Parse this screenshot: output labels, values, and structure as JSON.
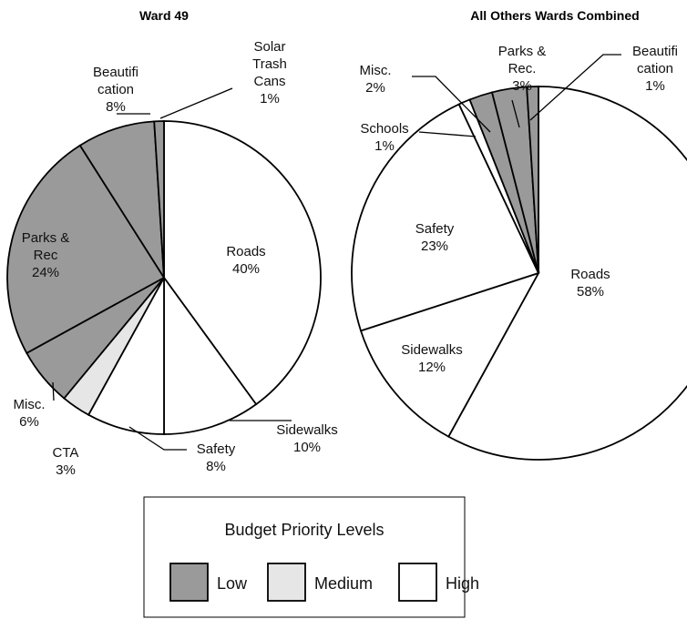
{
  "chart_data": [
    {
      "type": "pie",
      "title": "Ward 49",
      "slices": [
        {
          "name": "Roads",
          "label_lines": [
            "Roads",
            "40%"
          ],
          "value": 40,
          "priority": "high"
        },
        {
          "name": "Sidewalks",
          "label_lines": [
            "Sidewalks",
            "10%"
          ],
          "value": 10,
          "priority": "high"
        },
        {
          "name": "Safety",
          "label_lines": [
            "Safety",
            "8%"
          ],
          "value": 8,
          "priority": "high"
        },
        {
          "name": "CTA",
          "label_lines": [
            "CTA",
            "3%"
          ],
          "value": 3,
          "priority": "medium"
        },
        {
          "name": "Misc.",
          "label_lines": [
            "Misc.",
            "6%"
          ],
          "value": 6,
          "priority": "low"
        },
        {
          "name": "Parks & Rec",
          "label_lines": [
            "Parks &",
            "Rec",
            "24%"
          ],
          "value": 24,
          "priority": "low"
        },
        {
          "name": "Beautification",
          "label_lines": [
            "Beautifi",
            "cation",
            "8%"
          ],
          "value": 8,
          "priority": "low"
        },
        {
          "name": "Solar Trash Cans",
          "label_lines": [
            "Solar",
            "Trash",
            "Cans",
            "1%"
          ],
          "value": 1,
          "priority": "low"
        }
      ]
    },
    {
      "type": "pie",
      "title": "All Others Wards Combined",
      "slices": [
        {
          "name": "Roads",
          "label_lines": [
            "Roads",
            "58%"
          ],
          "value": 58,
          "priority": "high"
        },
        {
          "name": "Sidewalks",
          "label_lines": [
            "Sidewalks",
            "12%"
          ],
          "value": 12,
          "priority": "high"
        },
        {
          "name": "Safety",
          "label_lines": [
            "Safety",
            "23%"
          ],
          "value": 23,
          "priority": "high"
        },
        {
          "name": "Schools",
          "label_lines": [
            "Schools",
            "1%"
          ],
          "value": 1,
          "priority": "high"
        },
        {
          "name": "Misc.",
          "label_lines": [
            "Misc.",
            "2%"
          ],
          "value": 2,
          "priority": "low"
        },
        {
          "name": "Parks & Rec.",
          "label_lines": [
            "Parks &",
            "Rec.",
            "3%"
          ],
          "value": 3,
          "priority": "low"
        },
        {
          "name": "Beautification",
          "label_lines": [
            "Beautifi",
            "cation",
            "1%"
          ],
          "value": 1,
          "priority": "low"
        }
      ]
    }
  ],
  "legend": {
    "title": "Budget Priority Levels",
    "items": [
      {
        "key": "low",
        "label": "Low"
      },
      {
        "key": "medium",
        "label": "Medium"
      },
      {
        "key": "high",
        "label": "High"
      }
    ]
  },
  "colors": {
    "low": "#9a9a9a",
    "medium": "#e6e6e6",
    "high": "#ffffff"
  }
}
